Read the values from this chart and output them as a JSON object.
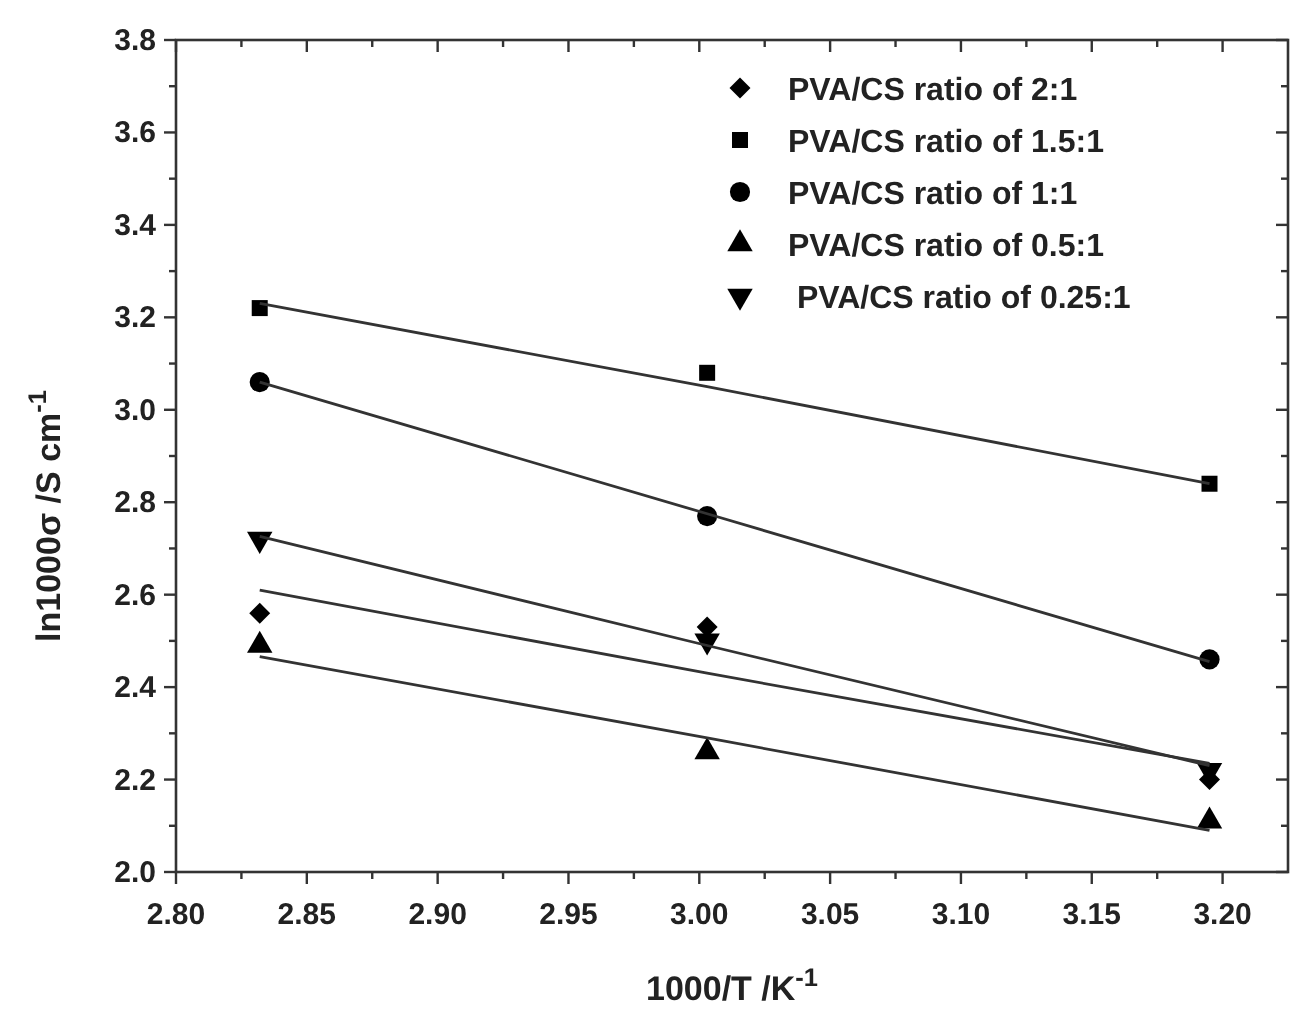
{
  "chart_data": {
    "type": "scatter",
    "xlabel": "1000/T /K$^{-1}$",
    "ylabel": "ln1000σ /S cm$^{-1}$",
    "xlim": [
      2.8,
      3.225
    ],
    "ylim": [
      2.0,
      3.8
    ],
    "xticks": [
      {
        "value": 2.8,
        "label": "2.80"
      },
      {
        "value": 2.825,
        "label": null
      },
      {
        "value": 2.85,
        "label": "2.85"
      },
      {
        "value": 2.875,
        "label": null
      },
      {
        "value": 2.9,
        "label": "2.90"
      },
      {
        "value": 2.925,
        "label": null
      },
      {
        "value": 2.95,
        "label": "2.95"
      },
      {
        "value": 2.975,
        "label": null
      },
      {
        "value": 3.0,
        "label": "3.00"
      },
      {
        "value": 3.025,
        "label": null
      },
      {
        "value": 3.05,
        "label": "3.05"
      },
      {
        "value": 3.075,
        "label": null
      },
      {
        "value": 3.1,
        "label": "3.10"
      },
      {
        "value": 3.125,
        "label": null
      },
      {
        "value": 3.15,
        "label": "3.15"
      },
      {
        "value": 3.175,
        "label": null
      },
      {
        "value": 3.2,
        "label": "3.20"
      }
    ],
    "yticks": [
      {
        "value": 2.0,
        "label": "2.0"
      },
      {
        "value": 2.1,
        "label": null
      },
      {
        "value": 2.2,
        "label": "2.2"
      },
      {
        "value": 2.3,
        "label": null
      },
      {
        "value": 2.4,
        "label": "2.4"
      },
      {
        "value": 2.5,
        "label": null
      },
      {
        "value": 2.6,
        "label": "2.6"
      },
      {
        "value": 2.7,
        "label": null
      },
      {
        "value": 2.8,
        "label": "2.8"
      },
      {
        "value": 2.9,
        "label": null
      },
      {
        "value": 3.0,
        "label": "3.0"
      },
      {
        "value": 3.1,
        "label": null
      },
      {
        "value": 3.2,
        "label": "3.2"
      },
      {
        "value": 3.3,
        "label": null
      },
      {
        "value": 3.4,
        "label": "3.4"
      },
      {
        "value": 3.5,
        "label": null
      },
      {
        "value": 3.6,
        "label": "3.6"
      },
      {
        "value": 3.7,
        "label": null
      },
      {
        "value": 3.8,
        "label": "3.8"
      }
    ],
    "grid": false,
    "legend": "top right",
    "x": [
      2.832,
      3.003,
      3.195
    ],
    "series": [
      {
        "name": "PVA/CS ratio of 2:1",
        "color": "#000000",
        "marker": "diamond",
        "values": [
          2.56,
          2.53,
          2.2
        ]
      },
      {
        "name": "PVA/CS ratio of 1.5:1",
        "color": "#000000",
        "marker": "square",
        "values": [
          3.22,
          3.08,
          2.84
        ]
      },
      {
        "name": "PVA/CS ratio of 1:1",
        "color": "#000000",
        "marker": "circle",
        "values": [
          3.06,
          2.77,
          2.46
        ]
      },
      {
        "name": "PVA/CS ratio of 0.5:1",
        "color": "#000000",
        "marker": "triangle",
        "values": [
          2.49,
          2.26,
          2.11
        ]
      },
      {
        "name": " PVA/CS ratio of 0.25:1",
        "color": "#000000",
        "marker": "triangle-down",
        "values": [
          2.72,
          2.5,
          2.22
        ]
      },
      {
        "type": "line",
        "color": "#333333",
        "marker": "none",
        "values": [
          2.61,
          2.43,
          2.235
        ]
      },
      {
        "type": "line",
        "color": "#333333",
        "marker": "none",
        "values": [
          3.23,
          3.05,
          2.84
        ]
      },
      {
        "type": "line",
        "color": "#333333",
        "marker": "none",
        "values": [
          3.06,
          2.775,
          2.455
        ]
      },
      {
        "type": "line",
        "color": "#333333",
        "marker": "none",
        "values": [
          2.466,
          2.29,
          2.09
        ]
      },
      {
        "type": "line",
        "color": "#333333",
        "marker": "none",
        "values": [
          2.726,
          2.49,
          2.23
        ]
      }
    ]
  }
}
